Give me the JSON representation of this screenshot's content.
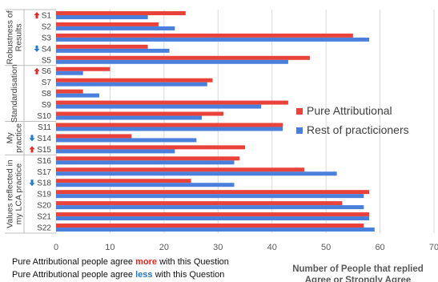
{
  "chart_data": {
    "type": "bar",
    "orientation": "horizontal",
    "xlabel_lines": [
      "Number of People that replied",
      "Agree or Strongly Agree"
    ],
    "xlim": [
      0,
      70
    ],
    "xticks": [
      0,
      10,
      20,
      30,
      40,
      50,
      60,
      70
    ],
    "grid": true,
    "legend_position": "right",
    "categories": [
      "S1",
      "S2",
      "S3",
      "S4",
      "S5",
      "S6",
      "S7",
      "S8",
      "S9",
      "S10",
      "S11",
      "S14",
      "S15",
      "S16",
      "S17",
      "S18",
      "S19",
      "S20",
      "S21",
      "S22"
    ],
    "category_markers": {
      "S1": "more",
      "S4": "less",
      "S6": "more",
      "S14": "less",
      "S15": "more",
      "S18": "less"
    },
    "groups": [
      {
        "label_lines": [
          "Robustness of",
          "Results"
        ],
        "categories": [
          "S1",
          "S2",
          "S3",
          "S4",
          "S5"
        ]
      },
      {
        "label_lines": [
          "Standardisation"
        ],
        "categories": [
          "S6",
          "S7",
          "S8",
          "S9",
          "S10"
        ]
      },
      {
        "label_lines": [
          "My",
          "practice"
        ],
        "categories": [
          "S11",
          "S14",
          "S15"
        ]
      },
      {
        "label_lines": [
          "Values reflected in",
          "my LCA practice"
        ],
        "categories": [
          "S16",
          "S17",
          "S18",
          "S19",
          "S20",
          "S21",
          "S22"
        ]
      }
    ],
    "series": [
      {
        "name": "Pure Attributional",
        "color": "#e8423b",
        "values": [
          24,
          19,
          55,
          17,
          47,
          10,
          29,
          5,
          43,
          31,
          42,
          14,
          35,
          34,
          46,
          25,
          58,
          53,
          58,
          57
        ]
      },
      {
        "name": "Rest of practicioners",
        "color": "#4a7fdc",
        "values": [
          17,
          22,
          58,
          21,
          43,
          5,
          28,
          8,
          38,
          27,
          42,
          26,
          22,
          33,
          52,
          33,
          57,
          57,
          58,
          59
        ]
      }
    ]
  },
  "notes": {
    "more_prefix": "Pure Attributional people agree ",
    "more_word": "more",
    "more_suffix": " with this Question",
    "less_prefix": "Pure Attributional people agree ",
    "less_word": "less",
    "less_suffix": " with this Question"
  },
  "colors": {
    "more_arrow": "#e8251f",
    "less_arrow": "#1f78c8",
    "grid": "#d9d9d9",
    "separator": "#bfbfbf"
  },
  "icons": {
    "more": "arrow-up-icon",
    "less": "arrow-down-icon"
  }
}
